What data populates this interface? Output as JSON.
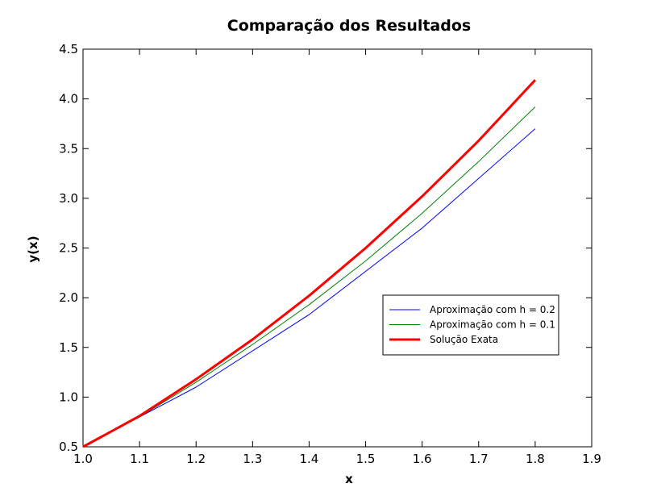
{
  "chart_data": {
    "type": "line",
    "title": "Comparação dos Resultados",
    "xlabel": "x",
    "ylabel": "y(x)",
    "xlim": [
      1.0,
      1.9
    ],
    "ylim": [
      0.5,
      4.5
    ],
    "xticks": [
      "1.0",
      "1.1",
      "1.2",
      "1.3",
      "1.4",
      "1.5",
      "1.6",
      "1.7",
      "1.8",
      "1.9"
    ],
    "yticks": [
      "0.5",
      "1.0",
      "1.5",
      "2.0",
      "2.5",
      "3.0",
      "3.5",
      "4.0",
      "4.5"
    ],
    "grid": false,
    "legend_position": "center-right",
    "series": [
      {
        "name": "Aproximação com h = 0.2",
        "color": "#0000ff",
        "linewidth": 1,
        "x": [
          1.0,
          1.2,
          1.4,
          1.6,
          1.8
        ],
        "y": [
          0.5,
          1.1,
          1.83,
          2.7,
          3.7
        ]
      },
      {
        "name": "Aproximação com h = 0.1",
        "color": "#008000",
        "linewidth": 1,
        "x": [
          1.0,
          1.1,
          1.2,
          1.3,
          1.4,
          1.5,
          1.6,
          1.7,
          1.8
        ],
        "y": [
          0.5,
          0.8,
          1.15,
          1.53,
          1.93,
          2.37,
          2.85,
          3.37,
          3.92
        ]
      },
      {
        "name": "Solução Exata",
        "color": "#ff0000",
        "linewidth": 3,
        "x": [
          1.0,
          1.1,
          1.2,
          1.3,
          1.4,
          1.5,
          1.6,
          1.7,
          1.8
        ],
        "y": [
          0.5,
          0.81,
          1.18,
          1.58,
          2.02,
          2.5,
          3.02,
          3.58,
          4.19
        ]
      }
    ]
  }
}
